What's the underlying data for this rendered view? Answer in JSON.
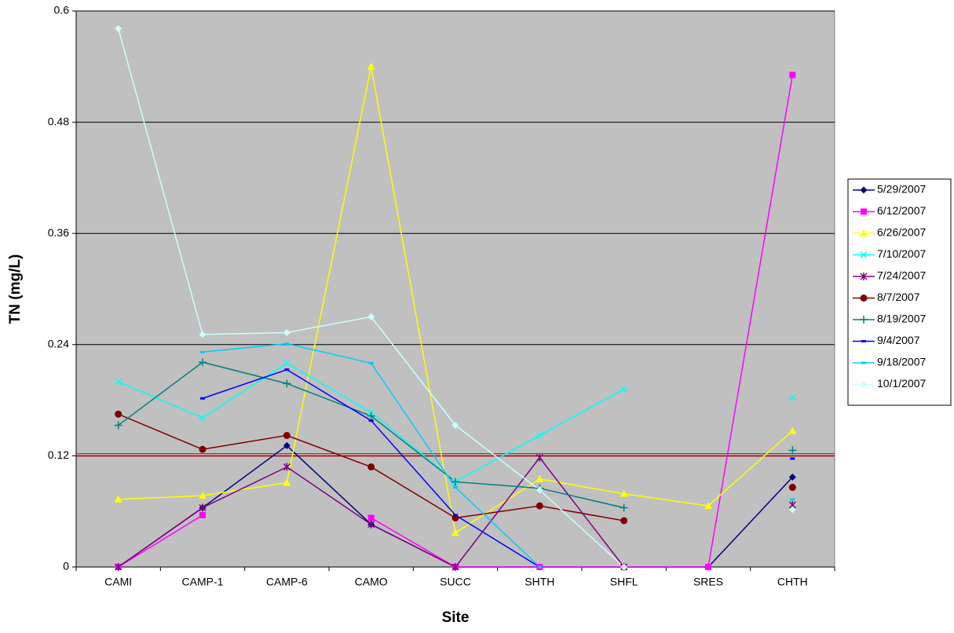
{
  "chart_data": {
    "type": "line",
    "x_label": "Site",
    "y_label": "TN (mg/L)",
    "categories": [
      "CAMI",
      "CAMP-1",
      "CAMP-6",
      "CAMO",
      "SUCC",
      "SHTH",
      "SHFL",
      "SRES",
      "CHTH"
    ],
    "ylim": [
      0,
      0.6
    ],
    "yticks": [
      0,
      0.12,
      0.24,
      0.36,
      0.48,
      0.6
    ],
    "grid": true,
    "plot_background": "#c0c0c0",
    "legend_position": "right",
    "reference_line": {
      "value": 0.121,
      "color": "#c00000"
    },
    "series": [
      {
        "name": "5/29/2007",
        "color": "#000080",
        "marker": "diamond",
        "values": [
          0,
          0.064,
          0.131,
          0.046,
          0,
          0,
          0,
          0,
          0.097
        ]
      },
      {
        "name": "6/12/2007",
        "color": "#ff00ff",
        "marker": "square",
        "values": [
          0,
          0.056,
          null,
          0.053,
          0,
          0,
          0,
          0,
          0.531
        ]
      },
      {
        "name": "6/26/2007",
        "color": "#ffff00",
        "marker": "triangle",
        "values": [
          0.073,
          0.077,
          0.091,
          0.54,
          0.037,
          0.095,
          0.079,
          0.066,
          0.147
        ]
      },
      {
        "name": "7/10/2007",
        "color": "#00ffff",
        "marker": "x",
        "values": [
          0.2,
          0.161,
          0.22,
          0.167,
          0.092,
          0.142,
          0.192,
          null,
          0.183
        ]
      },
      {
        "name": "7/24/2007",
        "color": "#800080",
        "marker": "star",
        "values": [
          0,
          0.064,
          0.108,
          0.046,
          0,
          0.118,
          0,
          null,
          0.067
        ]
      },
      {
        "name": "8/7/2007",
        "color": "#800000",
        "marker": "circle",
        "values": [
          0.165,
          0.127,
          0.142,
          0.108,
          0.053,
          0.066,
          0.05,
          null,
          0.086
        ]
      },
      {
        "name": "8/19/2007",
        "color": "#008080",
        "marker": "plus",
        "values": [
          0.153,
          0.221,
          0.198,
          0.163,
          0.092,
          0.085,
          0.064,
          null,
          0.126
        ]
      },
      {
        "name": "9/4/2007",
        "color": "#0000ff",
        "marker": "dash",
        "values": [
          null,
          0.182,
          0.213,
          0.158,
          0.056,
          0,
          null,
          null,
          0.117
        ]
      },
      {
        "name": "9/18/2007",
        "color": "#00ccff",
        "marker": "dash",
        "values": [
          null,
          0.232,
          0.241,
          0.22,
          0.086,
          0,
          null,
          null,
          0.073
        ]
      },
      {
        "name": "10/1/2007",
        "color": "#ccffff",
        "marker": "diamond",
        "values": [
          0.581,
          0.251,
          0.253,
          0.27,
          0.153,
          0.083,
          0,
          null,
          0.062
        ]
      }
    ]
  }
}
